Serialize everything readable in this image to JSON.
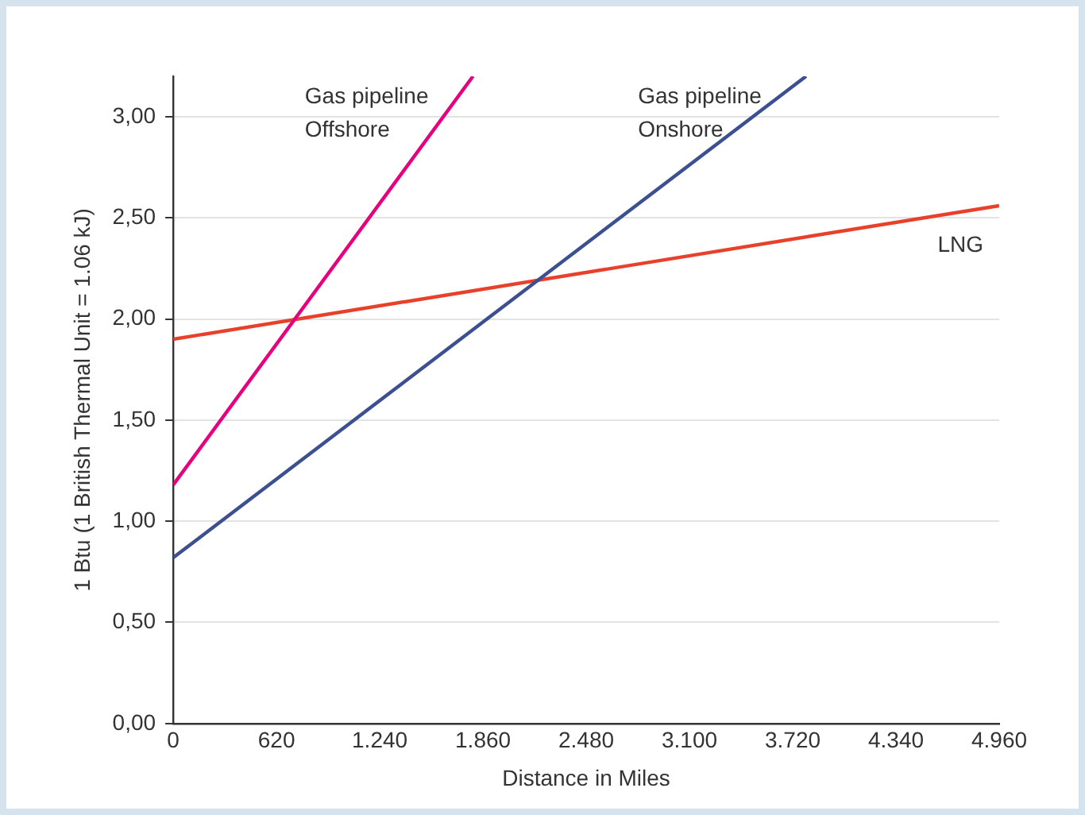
{
  "chart_data": {
    "type": "line",
    "xlabel": "Distance in Miles",
    "ylabel": "1 Btu (1 British Thermal Unit = 1.06 kJ)",
    "series": [
      {
        "name": "Gas pipeline Offshore",
        "color": "#e6007e",
        "x": [
          0,
          1800
        ],
        "values": [
          1.18,
          3.2
        ]
      },
      {
        "name": "Gas pipeline Onshore",
        "color": "#3c4f91",
        "x": [
          0,
          3800
        ],
        "values": [
          0.82,
          3.2
        ]
      },
      {
        "name": "LNG",
        "color": "#e8402a",
        "x": [
          0,
          4960
        ],
        "values": [
          1.9,
          2.56
        ]
      }
    ],
    "xlim": [
      0,
      4960
    ],
    "xticks": [
      0,
      {
        "value": 620,
        "label": "620"
      },
      {
        "value": 1240,
        "label": "1.240"
      },
      {
        "value": 1860,
        "label": "1.860"
      },
      {
        "value": 2480,
        "label": "2.480"
      },
      {
        "value": 3100,
        "label": "3.100"
      },
      {
        "value": 3720,
        "label": "3.720"
      },
      {
        "value": 4340,
        "label": "4.340"
      },
      {
        "value": 4960,
        "label": "4.960"
      }
    ],
    "ylim": [
      0,
      3.2
    ],
    "yticks": [
      {
        "value": 0,
        "label": "0,00"
      },
      {
        "value": 0.5,
        "label": "0,50"
      },
      {
        "value": 1,
        "label": "1,00"
      },
      {
        "value": 1.5,
        "label": "1,50"
      },
      {
        "value": 2,
        "label": "2,00"
      },
      {
        "value": 2.5,
        "label": "2,50"
      },
      {
        "value": 3,
        "label": "3,00"
      }
    ],
    "grid": "y",
    "legend": false,
    "marker": "none",
    "line_style": "solid"
  }
}
